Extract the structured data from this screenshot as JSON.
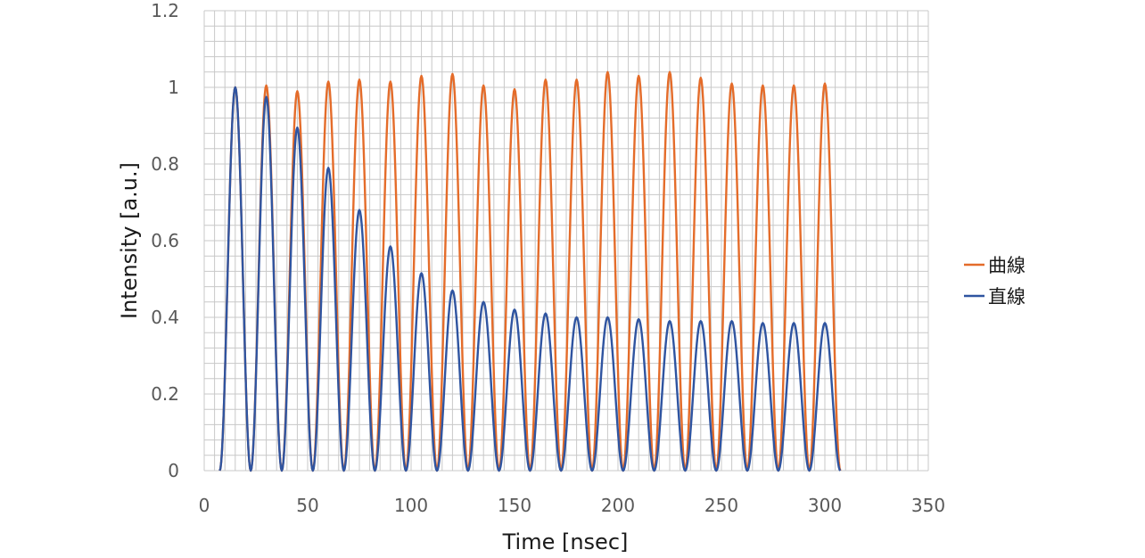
{
  "chart_data": {
    "type": "line",
    "title": "",
    "xlabel": "Time [nsec]",
    "ylabel": "Intensity [a.u.]",
    "xlim": [
      0,
      350
    ],
    "ylim": [
      0,
      1.2
    ],
    "x_ticks": [
      "0",
      "50",
      "100",
      "150",
      "200",
      "250",
      "300",
      "350"
    ],
    "y_ticks": [
      "0",
      "0.2",
      "0.4",
      "0.6",
      "0.8",
      "1",
      "1.2"
    ],
    "minor_grid": {
      "x_step": 5,
      "y_step": 0.04
    },
    "legend_position": "right",
    "pulse_half_width_nsec": 7.5,
    "series": [
      {
        "name": "曲線",
        "color": "#e46c2a",
        "peak_times_nsec": [
          15,
          30,
          45,
          60,
          75,
          90,
          105,
          120,
          135,
          150,
          165,
          180,
          195,
          210,
          225,
          240,
          255,
          270,
          285,
          300
        ],
        "peak_values": [
          1.0,
          1.005,
          0.99,
          1.015,
          1.02,
          1.015,
          1.03,
          1.035,
          1.005,
          0.995,
          1.02,
          1.02,
          1.04,
          1.03,
          1.04,
          1.025,
          1.01,
          1.005,
          1.005,
          1.01
        ]
      },
      {
        "name": "直線",
        "color": "#2f54a0",
        "peak_times_nsec": [
          15,
          30,
          45,
          60,
          75,
          90,
          105,
          120,
          135,
          150,
          165,
          180,
          195,
          210,
          225,
          240,
          255,
          270,
          285,
          300
        ],
        "peak_values": [
          1.0,
          0.975,
          0.895,
          0.79,
          0.68,
          0.585,
          0.515,
          0.47,
          0.44,
          0.42,
          0.41,
          0.4,
          0.4,
          0.395,
          0.39,
          0.39,
          0.39,
          0.385,
          0.385,
          0.385
        ]
      }
    ]
  }
}
